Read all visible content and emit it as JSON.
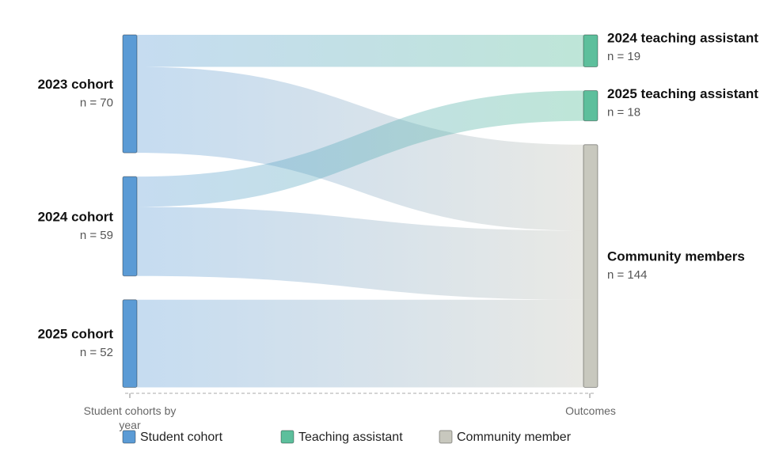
{
  "chart_data": {
    "type": "sankey",
    "groups": [
      {
        "name": "Student cohort",
        "color": "#5b9bd5"
      },
      {
        "name": "Teaching assistant",
        "color": "#5dbf9c"
      },
      {
        "name": "Community member",
        "color": "#c8c8be"
      }
    ],
    "nodes": [
      {
        "name": "2023 cohort",
        "value": 70,
        "value_label": "n = 70",
        "group": "Student cohort",
        "column": "left"
      },
      {
        "name": "2024 cohort",
        "value": 59,
        "value_label": "n = 59",
        "group": "Student cohort",
        "column": "left"
      },
      {
        "name": "2025 cohort",
        "value": 52,
        "value_label": "n = 52",
        "group": "Student cohort",
        "column": "left"
      },
      {
        "name": "2024 teaching assistant",
        "value": 19,
        "value_label": "n = 19",
        "group": "Teaching assistant",
        "column": "right"
      },
      {
        "name": "2025 teaching assistant",
        "value": 18,
        "value_label": "n = 18",
        "group": "Teaching assistant",
        "column": "right"
      },
      {
        "name": "Community members",
        "value": 144,
        "value_label": "n = 144",
        "group": "Community member",
        "column": "right"
      }
    ],
    "links": [
      {
        "source": "2023 cohort",
        "target": "2024 teaching assistant",
        "value": 19
      },
      {
        "source": "2023 cohort",
        "target": "Community members",
        "value": 51
      },
      {
        "source": "2024 cohort",
        "target": "2025 teaching assistant",
        "value": 18
      },
      {
        "source": "2024 cohort",
        "target": "Community members",
        "value": 41
      },
      {
        "source": "2025 cohort",
        "target": "Community members",
        "value": 52
      }
    ],
    "left_axis_label": "Student cohorts by year",
    "right_axis_label": "Outcomes"
  }
}
